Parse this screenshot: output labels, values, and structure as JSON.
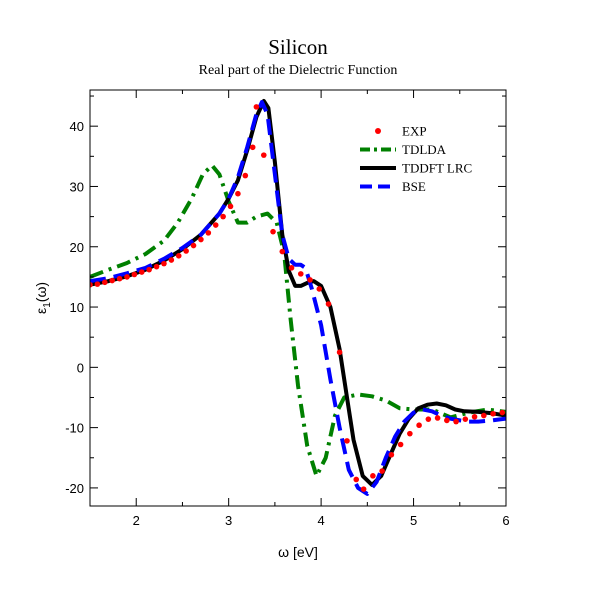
{
  "chart_data": {
    "type": "line",
    "title": "Silicon",
    "subtitle": "Real part of the Dielectric Function",
    "xlabel": "ω [eV]",
    "ylabel_main": "ε",
    "ylabel_sub": "1",
    "ylabel_tail": "(ω)",
    "xlim": [
      1.5,
      6
    ],
    "ylim": [
      -23,
      46
    ],
    "xticks": [
      2,
      3,
      4,
      5,
      6
    ],
    "xtick_labels": [
      "2",
      "3",
      "4",
      "5",
      "6"
    ],
    "yticks": [
      -20,
      -10,
      0,
      10,
      20,
      30,
      40
    ],
    "ytick_labels": [
      "-20",
      "-10",
      "0",
      "10",
      "20",
      "30",
      "40"
    ],
    "grid": false,
    "legend_position": "top-right",
    "series": [
      {
        "name": "EXP",
        "style": "markers",
        "color": "#ff0000",
        "points": [
          [
            1.5,
            13.7
          ],
          [
            1.58,
            13.8
          ],
          [
            1.66,
            14.1
          ],
          [
            1.74,
            14.4
          ],
          [
            1.82,
            14.7
          ],
          [
            1.9,
            15.0
          ],
          [
            1.98,
            15.4
          ],
          [
            2.06,
            15.8
          ],
          [
            2.14,
            16.2
          ],
          [
            2.22,
            16.7
          ],
          [
            2.3,
            17.2
          ],
          [
            2.38,
            17.8
          ],
          [
            2.46,
            18.5
          ],
          [
            2.54,
            19.3
          ],
          [
            2.62,
            20.2
          ],
          [
            2.7,
            21.2
          ],
          [
            2.78,
            22.3
          ],
          [
            2.86,
            23.6
          ],
          [
            2.94,
            25.0
          ],
          [
            3.02,
            26.7
          ],
          [
            3.1,
            28.8
          ],
          [
            3.18,
            31.8
          ],
          [
            3.26,
            36.5
          ],
          [
            3.3,
            43.2
          ],
          [
            3.38,
            35.2
          ],
          [
            3.48,
            22.5
          ],
          [
            3.58,
            19.2
          ],
          [
            3.68,
            16.5
          ],
          [
            3.78,
            15.5
          ],
          [
            3.88,
            14.5
          ],
          [
            3.98,
            13.0
          ],
          [
            4.08,
            10.5
          ],
          [
            4.2,
            2.5
          ],
          [
            4.28,
            -12.2
          ],
          [
            4.38,
            -18.6
          ],
          [
            4.46,
            -20.2
          ],
          [
            4.56,
            -18.0
          ],
          [
            4.66,
            -17.2
          ],
          [
            4.76,
            -14.5
          ],
          [
            4.86,
            -12.8
          ],
          [
            4.96,
            -11.0
          ],
          [
            5.06,
            -9.6
          ],
          [
            5.16,
            -8.6
          ],
          [
            5.26,
            -8.4
          ],
          [
            5.36,
            -8.8
          ],
          [
            5.46,
            -9.0
          ],
          [
            5.56,
            -8.6
          ],
          [
            5.66,
            -8.2
          ],
          [
            5.76,
            -8.0
          ],
          [
            5.86,
            -7.7
          ],
          [
            5.96,
            -7.5
          ]
        ]
      },
      {
        "name": "TDLDA",
        "style": "dashdot",
        "color": "#008000",
        "points": [
          [
            1.5,
            15.0
          ],
          [
            1.7,
            16.2
          ],
          [
            1.9,
            17.3
          ],
          [
            2.1,
            18.8
          ],
          [
            2.3,
            21.0
          ],
          [
            2.45,
            24.0
          ],
          [
            2.6,
            28.0
          ],
          [
            2.72,
            32.0
          ],
          [
            2.82,
            33.5
          ],
          [
            2.9,
            32.0
          ],
          [
            3.0,
            27.5
          ],
          [
            3.1,
            24.0
          ],
          [
            3.2,
            24.0
          ],
          [
            3.3,
            25.0
          ],
          [
            3.42,
            25.5
          ],
          [
            3.52,
            24.0
          ],
          [
            3.6,
            19.0
          ],
          [
            3.67,
            8.0
          ],
          [
            3.75,
            -3.0
          ],
          [
            3.85,
            -13.0
          ],
          [
            3.95,
            -18.0
          ],
          [
            4.05,
            -15.0
          ],
          [
            4.15,
            -8.0
          ],
          [
            4.25,
            -5.0
          ],
          [
            4.4,
            -4.5
          ],
          [
            4.55,
            -4.8
          ],
          [
            4.7,
            -5.5
          ],
          [
            4.85,
            -6.8
          ],
          [
            5.0,
            -7.0
          ],
          [
            5.2,
            -7.0
          ],
          [
            5.4,
            -8.3
          ],
          [
            5.6,
            -7.5
          ],
          [
            5.8,
            -7.0
          ],
          [
            6.0,
            -7.4
          ]
        ]
      },
      {
        "name": "TDDFT LRC",
        "style": "solid",
        "color": "#000000",
        "points": [
          [
            1.5,
            13.7
          ],
          [
            1.7,
            14.3
          ],
          [
            1.9,
            15.1
          ],
          [
            2.1,
            16.2
          ],
          [
            2.3,
            17.7
          ],
          [
            2.5,
            19.6
          ],
          [
            2.7,
            22.0
          ],
          [
            2.9,
            25.5
          ],
          [
            3.0,
            28.0
          ],
          [
            3.1,
            31.0
          ],
          [
            3.2,
            36.0
          ],
          [
            3.3,
            41.5
          ],
          [
            3.38,
            44.2
          ],
          [
            3.43,
            43.0
          ],
          [
            3.5,
            34.0
          ],
          [
            3.58,
            22.0
          ],
          [
            3.65,
            16.0
          ],
          [
            3.72,
            13.5
          ],
          [
            3.78,
            13.5
          ],
          [
            3.85,
            14.0
          ],
          [
            3.92,
            14.3
          ],
          [
            4.0,
            13.5
          ],
          [
            4.1,
            10.0
          ],
          [
            4.2,
            3.0
          ],
          [
            4.28,
            -5.0
          ],
          [
            4.35,
            -12.0
          ],
          [
            4.45,
            -18.0
          ],
          [
            4.55,
            -19.5
          ],
          [
            4.65,
            -18.0
          ],
          [
            4.75,
            -14.5
          ],
          [
            4.85,
            -11.0
          ],
          [
            4.95,
            -8.5
          ],
          [
            5.05,
            -6.8
          ],
          [
            5.15,
            -6.2
          ],
          [
            5.25,
            -6.0
          ],
          [
            5.35,
            -6.3
          ],
          [
            5.45,
            -7.0
          ],
          [
            5.55,
            -7.3
          ],
          [
            5.7,
            -7.4
          ],
          [
            5.85,
            -7.6
          ],
          [
            6.0,
            -8.0
          ]
        ]
      },
      {
        "name": "BSE",
        "style": "dashed",
        "color": "#0000ff",
        "points": [
          [
            1.5,
            14.3
          ],
          [
            1.7,
            14.8
          ],
          [
            1.9,
            15.6
          ],
          [
            2.1,
            16.5
          ],
          [
            2.3,
            18.0
          ],
          [
            2.5,
            19.8
          ],
          [
            2.7,
            22.0
          ],
          [
            2.9,
            25.5
          ],
          [
            3.0,
            28.0
          ],
          [
            3.1,
            31.5
          ],
          [
            3.2,
            36.5
          ],
          [
            3.3,
            42.0
          ],
          [
            3.36,
            44.0
          ],
          [
            3.42,
            42.0
          ],
          [
            3.5,
            32.0
          ],
          [
            3.58,
            22.0
          ],
          [
            3.65,
            18.0
          ],
          [
            3.72,
            17.0
          ],
          [
            3.78,
            17.0
          ],
          [
            3.83,
            16.5
          ],
          [
            3.9,
            13.0
          ],
          [
            4.0,
            7.0
          ],
          [
            4.1,
            -2.0
          ],
          [
            4.2,
            -10.0
          ],
          [
            4.3,
            -17.0
          ],
          [
            4.4,
            -20.0
          ],
          [
            4.5,
            -21.0
          ],
          [
            4.6,
            -19.0
          ],
          [
            4.7,
            -15.0
          ],
          [
            4.8,
            -11.5
          ],
          [
            4.9,
            -9.0
          ],
          [
            5.0,
            -7.5
          ],
          [
            5.1,
            -7.0
          ],
          [
            5.2,
            -7.3
          ],
          [
            5.3,
            -8.0
          ],
          [
            5.4,
            -8.5
          ],
          [
            5.5,
            -8.8
          ],
          [
            5.6,
            -9.0
          ],
          [
            5.7,
            -9.0
          ],
          [
            5.85,
            -8.8
          ],
          [
            6.0,
            -8.5
          ]
        ]
      }
    ]
  }
}
